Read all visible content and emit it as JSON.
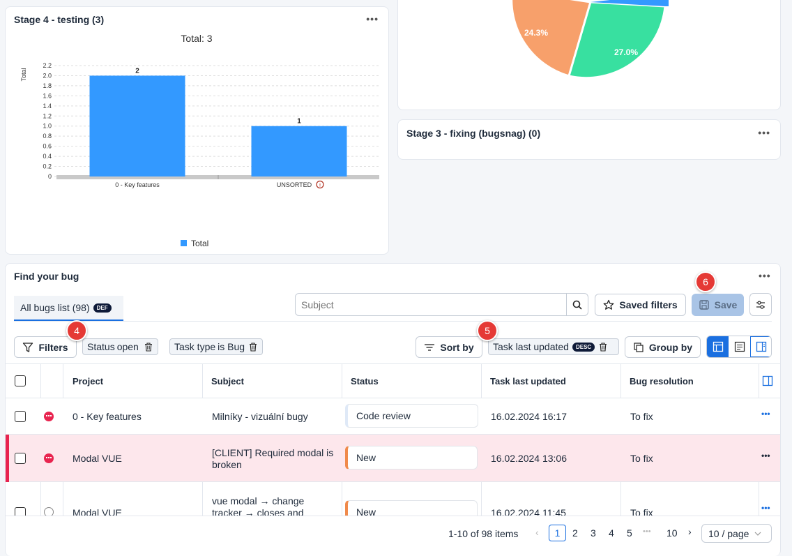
{
  "stage4": {
    "title": "Stage 4 - testing (3)",
    "menu": "•••",
    "chart_total": "Total: 3",
    "legend": "Total"
  },
  "chart_data": {
    "type": "bar",
    "categories": [
      "0 - Key features",
      "UNSORTED"
    ],
    "values": [
      2,
      1
    ],
    "title": "Total: 3",
    "ylabel": "Total",
    "ylim": [
      0,
      2.2
    ],
    "yticks": [
      "2.2",
      "2.0",
      "1.8",
      "1.6",
      "1.4",
      "1.2",
      "1.0",
      "0.8",
      "0.6",
      "0.4",
      "0.2",
      "0"
    ],
    "series": [
      {
        "name": "Total",
        "values": [
          2,
          1
        ],
        "color": "#3399ff"
      }
    ],
    "legend": "bottom-center",
    "data_labels": [
      "2",
      "1"
    ]
  },
  "pie": {
    "slices": [
      {
        "label": "24.3%",
        "color": "#f7a06b"
      },
      {
        "label": "27.0%",
        "color": "#38e0a0"
      }
    ],
    "edge_color": "#3399ff"
  },
  "stage3": {
    "title": "Stage 3 - fixing (bugsnag) (0)",
    "menu": "•••"
  },
  "bugs": {
    "title": "Find your bug",
    "menu": "•••",
    "tab_label": "All bugs list (98)",
    "tab_badge": "DEF",
    "search_placeholder": "Subject",
    "saved_filters": "Saved filters",
    "save": "Save",
    "filters": "Filters",
    "filter_pills": [
      {
        "key": "Status",
        "value": "open"
      },
      {
        "key": "Task type",
        "value": "is Bug"
      }
    ],
    "sort_by": "Sort by",
    "sort_pill": "Task last updated",
    "sort_badge": "DESC",
    "group_by": "Group by",
    "markers": [
      "4",
      "5",
      "6"
    ],
    "columns": [
      "Project",
      "Subject",
      "Status",
      "Task last updated",
      "Bug resolution"
    ],
    "rows": [
      {
        "project": "0 - Key features",
        "subject": "Milníky - vizuální bugy",
        "status": "Code review",
        "updated": "16.02.2024 16:17",
        "resolution": "To fix",
        "menu": "•••"
      },
      {
        "project": "Modal VUE",
        "subject": "[CLIENT] Required modal is broken",
        "status": "New",
        "updated": "16.02.2024 13:06",
        "resolution": "To fix",
        "menu": "•••"
      },
      {
        "project": "Modal VUE",
        "subject": "vue modal → change tracker → closes and",
        "status": "New",
        "updated": "16.02.2024 11:45",
        "resolution": "To fix",
        "menu": "•••"
      }
    ],
    "pagination": {
      "summary": "1-10 of 98 items",
      "pages": [
        "1",
        "2",
        "3",
        "4",
        "5"
      ],
      "ellipsis": "•••",
      "last": "10",
      "page_size": "10 / page"
    }
  }
}
